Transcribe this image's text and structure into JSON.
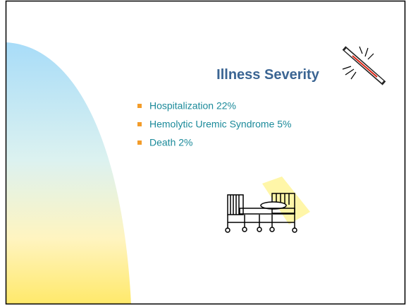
{
  "slide": {
    "title": "Illness Severity",
    "bullets": [
      "Hospitalization 22%",
      "Hemolytic Uremic Syndrome 5%",
      "Death 2%"
    ]
  }
}
